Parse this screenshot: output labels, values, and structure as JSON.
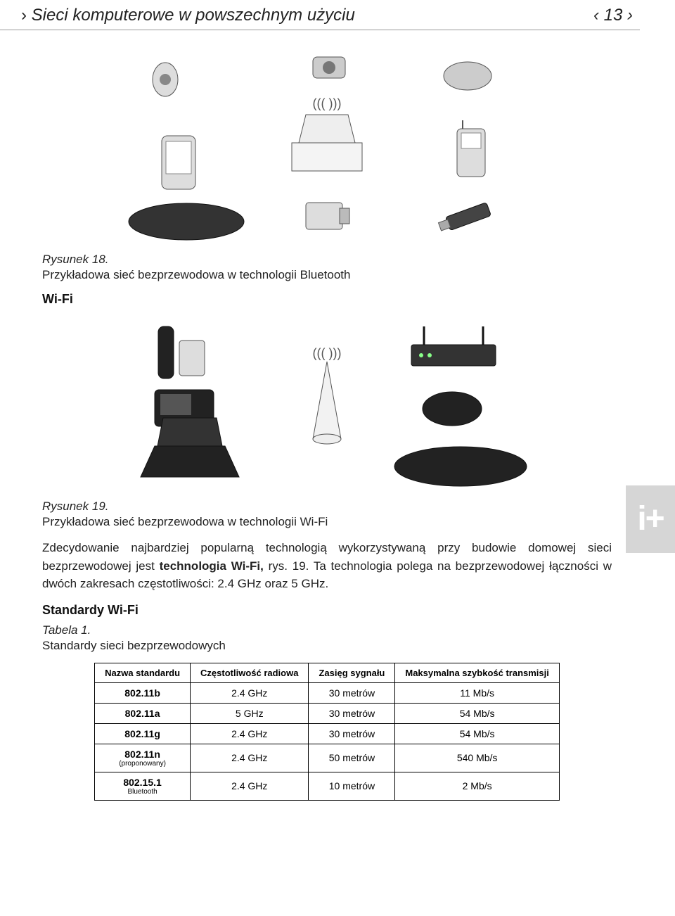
{
  "header": {
    "chev_left": "›",
    "chev_right": "›",
    "title": "Sieci komputerowe w powszechnym użyciu",
    "page_prefix": "‹",
    "page_num": "13",
    "page_suffix": "›"
  },
  "fig18": {
    "label": "Rysunek 18.",
    "caption": "Przykładowa sieć bezprzewodowa w technologii Bluetooth"
  },
  "sec_wifi": {
    "heading": "Wi-Fi"
  },
  "fig19": {
    "label": "Rysunek 19.",
    "caption": "Przykładowa sieć bezprzewodowa w technologii Wi-Fi"
  },
  "paragraph": {
    "pre": "Zdecydowanie najbardziej popularną technologią wykorzystywaną przy budowie domowej sieci bezprzewodowej jest ",
    "bold1": "technologia Wi-Fi,",
    "mid": " rys. 19. Ta technologia polega na bezprzewodowej łączności w dwóch zakresach częstotliwości: 2.4 GHz oraz 5 GHz."
  },
  "sec_standards": {
    "heading": "Standardy Wi-Fi"
  },
  "table_caption": {
    "label": "Tabela 1.",
    "text": "Standardy sieci bezprzewodowych"
  },
  "table": {
    "columns": [
      "Nazwa standardu",
      "Częstotliwość radiowa",
      "Zasięg sygnału",
      "Maksymalna szybkość transmisji"
    ],
    "rows": [
      {
        "name": "802.11b",
        "sub": "",
        "freq": "2.4 GHz",
        "range": "30 metrów",
        "speed": "11 Mb/s"
      },
      {
        "name": "802.11a",
        "sub": "",
        "freq": "5 GHz",
        "range": "30 metrów",
        "speed": "54 Mb/s"
      },
      {
        "name": "802.11g",
        "sub": "",
        "freq": "2.4 GHz",
        "range": "30 metrów",
        "speed": "54 Mb/s"
      },
      {
        "name": "802.11n",
        "sub": "(proponowany)",
        "freq": "2.4 GHz",
        "range": "50 metrów",
        "speed": "540 Mb/s"
      },
      {
        "name": "802.15.1",
        "sub": "Bluetooth",
        "freq": "2.4 GHz",
        "range": "10 metrów",
        "speed": "2 Mb/s"
      }
    ]
  },
  "sidebar": {
    "glyph": "i+"
  }
}
